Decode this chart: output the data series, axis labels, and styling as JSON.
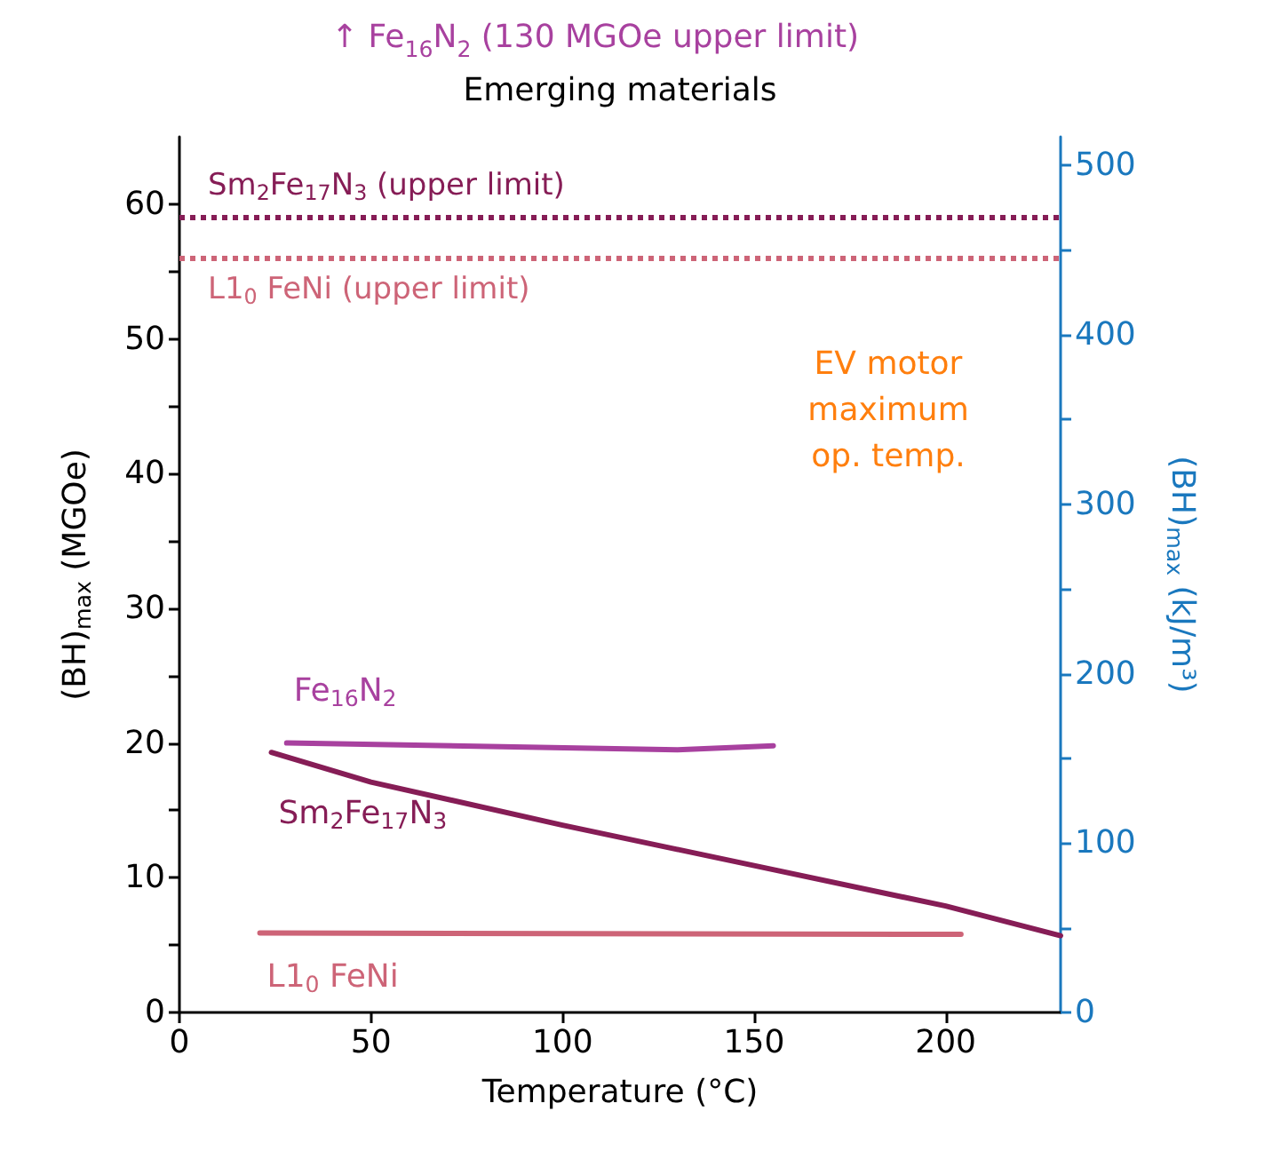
{
  "chart_data": {
    "type": "line",
    "title": "Emerging materials",
    "xlabel": "Temperature (°C)",
    "ylabel": "(BH)$_{max}$ (MGOe)",
    "y2label": "(BH)$_{max}$ (kJ/m³)",
    "annotations": [
      "↑ Fe$_{16}$N$_{2}$ (130 MGOe upper limit)",
      "EV motor\nmaximum\nop. temp."
    ],
    "xlim": [
      0,
      230
    ],
    "xticks": [
      0,
      50,
      100,
      150,
      200
    ],
    "ylim": [
      0,
      65
    ],
    "yticks": [
      0,
      {
        "value": 5,
        "label": null
      },
      10,
      {
        "value": 15,
        "label": null
      },
      20,
      {
        "value": 25,
        "label": null
      },
      30,
      {
        "value": 35,
        "label": null
      },
      40,
      {
        "value": 45,
        "label": null
      },
      50,
      {
        "value": 55,
        "label": null
      },
      60
    ],
    "y2lim": [
      0,
      517
    ],
    "y2ticks": [
      0,
      {
        "value": 50,
        "label": null
      },
      100,
      {
        "value": 150,
        "label": null
      },
      200,
      {
        "value": 250,
        "label": null
      },
      300,
      {
        "value": 350,
        "label": null
      },
      400,
      {
        "value": 450,
        "label": null
      },
      500
    ],
    "series": [
      {
        "name": "Fe$_{16}$N$_{2}$",
        "color": "#a8419f",
        "x": [
          28,
          130,
          155
        ],
        "values": [
          20.0,
          19.5,
          19.8
        ]
      },
      {
        "name": "Sm$_{2}$Fe$_{17}$N$_{3}$",
        "color": "#861d56",
        "x": [
          24,
          50,
          100,
          150,
          200,
          230
        ],
        "values": [
          19.3,
          17.1,
          13.9,
          10.9,
          7.9,
          5.7
        ]
      },
      {
        "name": "L1$_{0}$ FeNi",
        "color": "#cd6477",
        "x": [
          21,
          204
        ],
        "values": [
          5.9,
          5.8
        ]
      }
    ],
    "ref_lines": [
      {
        "axis": "y",
        "value": 59,
        "label": "Sm$_{2}$Fe$_{17}$N$_{3}$ (upper limit)",
        "color": "#861d56",
        "line_style": "dotted"
      },
      {
        "axis": "y",
        "value": 56,
        "label": "L1$_{0}$ FeNi (upper limit)",
        "color": "#cd6477",
        "line_style": "dotted"
      }
    ],
    "grid": false,
    "legend": false,
    "marker": "none",
    "line_style": "solid"
  }
}
